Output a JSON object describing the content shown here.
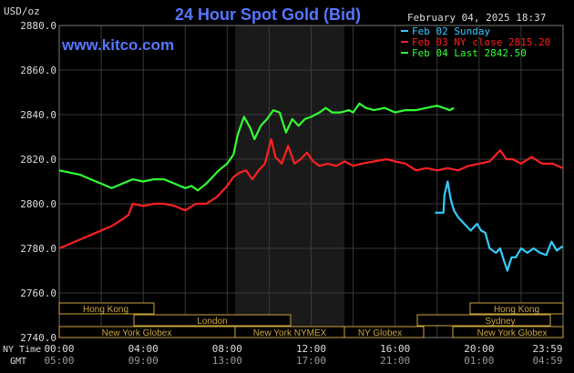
{
  "header": {
    "unit": "USD/oz",
    "title": "24 Hour Spot Gold (Bid)",
    "site": "www.kitco.com",
    "datetime": "February 04, 2025 18:37"
  },
  "legend": [
    {
      "label": "Feb 02 Sunday",
      "color": "#33ccff"
    },
    {
      "label": "Feb 03 NY close 2815.20",
      "color": "#ff2020"
    },
    {
      "label": "Feb 04 Last 2842.50",
      "color": "#33ff33"
    }
  ],
  "markets": {
    "row1": [
      {
        "label": "Hong Kong"
      },
      {
        "label": "Hong Kong"
      }
    ],
    "row2": [
      {
        "label": "London"
      },
      {
        "label": "Sydney"
      }
    ],
    "row3": [
      {
        "label": "New York Globex"
      },
      {
        "label": "New York NYMEX"
      },
      {
        "label": "NY Globex"
      },
      {
        "label": "New York Globex"
      }
    ]
  },
  "time_labels": {
    "ny_label": "NY Time",
    "gmt_label": "GMT",
    "ny": [
      "00:00",
      "04:00",
      "08:00",
      "12:00",
      "16:00",
      "20:00",
      "23:59"
    ],
    "gmt": [
      "05:00",
      "09:00",
      "13:00",
      "17:00",
      "21:00",
      "01:00",
      "04:59"
    ]
  },
  "chart_data": {
    "type": "line",
    "x_unit": "hours (NY time)",
    "ylim": [
      2740,
      2880
    ],
    "yticks": [
      "2880.0",
      "2860.0",
      "2840.0",
      "2820.0",
      "2800.0",
      "2780.0",
      "2760.0",
      "2740.0"
    ],
    "ytick_values": [
      2880,
      2860,
      2840,
      2820,
      2800,
      2780,
      2760,
      2740
    ],
    "xlim": [
      0,
      24
    ],
    "grid": true,
    "legend_position": "top-right",
    "series": [
      {
        "name": "Feb 02 Sunday",
        "color": "#33ccff",
        "points": [
          [
            17.9,
            2796
          ],
          [
            18.3,
            2796
          ],
          [
            18.35,
            2804
          ],
          [
            18.5,
            2810
          ],
          [
            18.65,
            2802
          ],
          [
            18.8,
            2797
          ],
          [
            19.0,
            2794
          ],
          [
            19.3,
            2791
          ],
          [
            19.6,
            2788
          ],
          [
            19.9,
            2791
          ],
          [
            20.1,
            2788
          ],
          [
            20.3,
            2787
          ],
          [
            20.5,
            2780
          ],
          [
            20.8,
            2778
          ],
          [
            21.0,
            2780
          ],
          [
            21.2,
            2774
          ],
          [
            21.35,
            2770
          ],
          [
            21.55,
            2776
          ],
          [
            21.75,
            2776
          ],
          [
            22.0,
            2780
          ],
          [
            22.3,
            2778
          ],
          [
            22.6,
            2780
          ],
          [
            22.9,
            2778
          ],
          [
            23.2,
            2777
          ],
          [
            23.45,
            2783
          ],
          [
            23.7,
            2779
          ],
          [
            23.98,
            2781
          ]
        ]
      },
      {
        "name": "Feb 03 NY close 2815.20",
        "color": "#ff2020",
        "points": [
          [
            0.0,
            2780
          ],
          [
            0.5,
            2782
          ],
          [
            1.0,
            2784
          ],
          [
            1.5,
            2786
          ],
          [
            2.0,
            2788
          ],
          [
            2.5,
            2790
          ],
          [
            3.0,
            2793
          ],
          [
            3.3,
            2795
          ],
          [
            3.5,
            2800
          ],
          [
            4.0,
            2799
          ],
          [
            4.5,
            2800
          ],
          [
            5.0,
            2800
          ],
          [
            5.5,
            2799
          ],
          [
            6.0,
            2797
          ],
          [
            6.5,
            2800
          ],
          [
            7.0,
            2800
          ],
          [
            7.5,
            2803
          ],
          [
            8.0,
            2808
          ],
          [
            8.3,
            2812
          ],
          [
            8.6,
            2814
          ],
          [
            8.9,
            2815
          ],
          [
            9.2,
            2811
          ],
          [
            9.5,
            2815
          ],
          [
            9.8,
            2818
          ],
          [
            10.1,
            2829
          ],
          [
            10.3,
            2821
          ],
          [
            10.6,
            2818
          ],
          [
            10.9,
            2826
          ],
          [
            11.2,
            2818
          ],
          [
            11.5,
            2820
          ],
          [
            11.8,
            2823
          ],
          [
            12.1,
            2819
          ],
          [
            12.4,
            2817
          ],
          [
            12.8,
            2818
          ],
          [
            13.2,
            2817
          ],
          [
            13.6,
            2819
          ],
          [
            14.0,
            2817
          ],
          [
            14.4,
            2818
          ],
          [
            15.0,
            2819
          ],
          [
            15.6,
            2820
          ],
          [
            16.0,
            2819
          ],
          [
            16.5,
            2818
          ],
          [
            17.0,
            2815
          ],
          [
            17.5,
            2816
          ],
          [
            18.0,
            2815
          ],
          [
            18.5,
            2816
          ],
          [
            19.0,
            2815
          ],
          [
            19.5,
            2817
          ],
          [
            20.0,
            2818
          ],
          [
            20.5,
            2819
          ],
          [
            21.0,
            2824
          ],
          [
            21.3,
            2820
          ],
          [
            21.6,
            2820
          ],
          [
            22.0,
            2818
          ],
          [
            22.5,
            2821
          ],
          [
            23.0,
            2818
          ],
          [
            23.5,
            2818
          ],
          [
            23.98,
            2816
          ]
        ]
      },
      {
        "name": "Feb 04 Last 2842.50",
        "color": "#33ff33",
        "points": [
          [
            0.0,
            2815
          ],
          [
            0.5,
            2814
          ],
          [
            1.0,
            2813
          ],
          [
            1.5,
            2811
          ],
          [
            2.0,
            2809
          ],
          [
            2.5,
            2807
          ],
          [
            3.0,
            2809
          ],
          [
            3.5,
            2811
          ],
          [
            4.0,
            2810
          ],
          [
            4.5,
            2811
          ],
          [
            5.0,
            2811
          ],
          [
            5.5,
            2809
          ],
          [
            6.0,
            2807
          ],
          [
            6.3,
            2808
          ],
          [
            6.6,
            2806
          ],
          [
            7.0,
            2809
          ],
          [
            7.3,
            2812
          ],
          [
            7.6,
            2815
          ],
          [
            8.0,
            2818
          ],
          [
            8.3,
            2822
          ],
          [
            8.5,
            2831
          ],
          [
            8.8,
            2839
          ],
          [
            9.1,
            2834
          ],
          [
            9.3,
            2829
          ],
          [
            9.6,
            2835
          ],
          [
            9.9,
            2838
          ],
          [
            10.2,
            2842
          ],
          [
            10.5,
            2841
          ],
          [
            10.8,
            2832
          ],
          [
            11.1,
            2838
          ],
          [
            11.4,
            2835
          ],
          [
            11.7,
            2838
          ],
          [
            12.0,
            2839
          ],
          [
            12.4,
            2841
          ],
          [
            12.7,
            2843
          ],
          [
            13.0,
            2841
          ],
          [
            13.4,
            2841
          ],
          [
            13.8,
            2842
          ],
          [
            14.0,
            2841
          ],
          [
            14.3,
            2845
          ],
          [
            14.6,
            2843
          ],
          [
            15.0,
            2842
          ],
          [
            15.5,
            2843
          ],
          [
            16.0,
            2841
          ],
          [
            16.5,
            2842
          ],
          [
            17.0,
            2842
          ],
          [
            17.5,
            2843
          ],
          [
            18.0,
            2844
          ],
          [
            18.3,
            2843
          ],
          [
            18.6,
            2842
          ],
          [
            18.8,
            2843
          ]
        ]
      }
    ]
  }
}
